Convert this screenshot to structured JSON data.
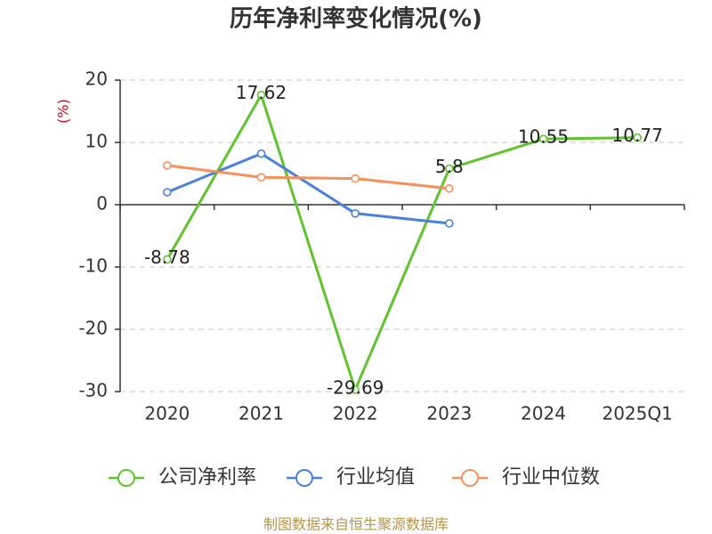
{
  "chart_data": {
    "type": "line",
    "title": "历年净利率变化情况(%)",
    "ylabel": "(%)",
    "categories": [
      "2020",
      "2021",
      "2022",
      "2023",
      "2024",
      "2025Q1"
    ],
    "ylim": [
      -30,
      20
    ],
    "y_ticks": [
      20,
      10,
      0,
      -10,
      -20,
      -30
    ],
    "grid": true,
    "legend_position": "bottom",
    "series": [
      {
        "name": "公司净利率",
        "color": "#5fc42d",
        "show_labels": true,
        "values": [
          -8.78,
          17.62,
          -29.69,
          5.8,
          10.55,
          10.77
        ]
      },
      {
        "name": "行业均值",
        "color": "#4a80dc",
        "show_labels": false,
        "values": [
          2.0,
          8.2,
          -1.4,
          -3.0,
          null,
          null
        ]
      },
      {
        "name": "行业中位数",
        "color": "#f7915c",
        "show_labels": false,
        "values": [
          6.3,
          4.4,
          4.2,
          2.6,
          null,
          null
        ]
      }
    ]
  },
  "colors": {
    "ylabel": "#d0021b",
    "source_text": "#b8954a"
  },
  "footer": {
    "source": "制图数据来自恒生聚源数据库"
  }
}
